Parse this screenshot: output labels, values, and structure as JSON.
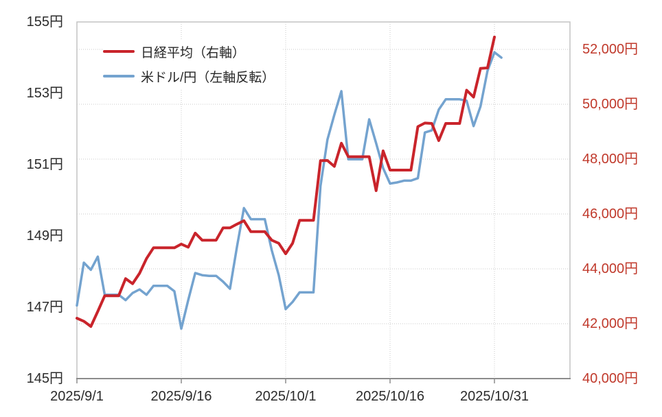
{
  "chart_data": {
    "type": "line",
    "title": "",
    "legend_position": "top-left-inside",
    "grid": true,
    "x": [
      "9/1",
      "9/2",
      "9/3",
      "9/4",
      "9/5",
      "9/6",
      "9/7",
      "9/8",
      "9/9",
      "9/10",
      "9/11",
      "9/12",
      "9/13",
      "9/14",
      "9/15",
      "9/16",
      "9/17",
      "9/18",
      "9/19",
      "9/20",
      "9/21",
      "9/22",
      "9/23",
      "9/24",
      "9/25",
      "9/26",
      "9/27",
      "9/28",
      "9/29",
      "9/30",
      "10/1",
      "10/2",
      "10/3",
      "10/4",
      "10/5",
      "10/6",
      "10/7",
      "10/8",
      "10/9",
      "10/10",
      "10/11",
      "10/12",
      "10/13",
      "10/14",
      "10/15",
      "10/16",
      "10/17",
      "10/18",
      "10/19",
      "10/20",
      "10/21",
      "10/22",
      "10/23",
      "10/24",
      "10/25",
      "10/26",
      "10/27",
      "10/28",
      "10/29",
      "10/30",
      "10/31",
      "11/1"
    ],
    "series": [
      {
        "name": "日経平均（右軸）",
        "axis": "right",
        "color": "#c9242b",
        "stroke_width": 4,
        "values": [
          42200,
          42090,
          41900,
          42450,
          43019,
          43019,
          43019,
          43644,
          43459,
          43838,
          44372,
          44768,
          44768,
          44768,
          44768,
          44902,
          44790,
          45303,
          45045,
          45045,
          45045,
          45493,
          45493,
          45630,
          45755,
          45355,
          45355,
          45355,
          45044,
          44932,
          44550,
          44936,
          45769,
          45769,
          45769,
          47945,
          47950,
          47735,
          48580,
          48088,
          48088,
          48088,
          48088,
          46850,
          48300,
          47600,
          47600,
          47600,
          47600,
          49185,
          49316,
          49300,
          48675,
          49300,
          49300,
          49300,
          50512,
          50260,
          51307,
          51325,
          52450,
          null
        ]
      },
      {
        "name": "米ドル/円（左軸反転）",
        "axis": "left",
        "color": "#74a3cf",
        "stroke_width": 3.5,
        "values": [
          147.05,
          148.25,
          148.05,
          148.42,
          147.35,
          147.35,
          147.35,
          147.2,
          147.4,
          147.5,
          147.35,
          147.6,
          147.6,
          147.6,
          147.45,
          146.4,
          147.2,
          147.96,
          147.9,
          147.88,
          147.88,
          147.72,
          147.52,
          148.7,
          149.78,
          149.47,
          149.47,
          149.47,
          148.6,
          147.9,
          146.95,
          147.15,
          147.42,
          147.42,
          147.42,
          150.4,
          151.7,
          152.4,
          153.06,
          151.15,
          151.15,
          151.15,
          152.27,
          151.6,
          150.9,
          150.47,
          150.5,
          150.55,
          150.55,
          150.62,
          151.9,
          151.96,
          152.54,
          152.83,
          152.83,
          152.83,
          152.79,
          152.08,
          152.63,
          153.63,
          154.15,
          154.0
        ]
      }
    ],
    "left_axis": {
      "min": 145,
      "max": 155,
      "tick_values": [
        145,
        147,
        149,
        151,
        153,
        155
      ],
      "tick_labels": [
        "145円",
        "147円",
        "149円",
        "151円",
        "153円",
        "155円"
      ],
      "color": "#2b2b2b"
    },
    "right_axis": {
      "min": 40000,
      "max": 53000,
      "tick_values": [
        40000,
        42000,
        44000,
        46000,
        48000,
        50000,
        52000
      ],
      "tick_labels": [
        "40,000円",
        "42,000円",
        "44,000円",
        "46,000円",
        "48,000円",
        "50,000円",
        "52,000円"
      ],
      "color": "#c0392b"
    },
    "x_axis": {
      "tick_days": [
        0,
        15,
        30,
        45,
        60
      ],
      "tick_labels": [
        "2025/9/1",
        "2025/9/16",
        "2025/10/1",
        "2025/10/16",
        "2025/10/31"
      ],
      "grid_days": [
        15,
        30,
        45,
        60
      ],
      "days_span": 60,
      "right_edge_day": 70.86,
      "color": "#2b2b2b"
    }
  },
  "legend": {
    "items": [
      {
        "label": "日経平均（右軸）",
        "color": "#c9242b",
        "swatch_height": 4
      },
      {
        "label": "米ドル/円（左軸反転）",
        "color": "#74a3cf",
        "swatch_height": 3.5
      }
    ]
  },
  "style_colors": {
    "gridline": "#c9c9c9",
    "plot_border": "#c3c3c3",
    "axis_line": "#8c8c8c",
    "background": "#ffffff"
  }
}
